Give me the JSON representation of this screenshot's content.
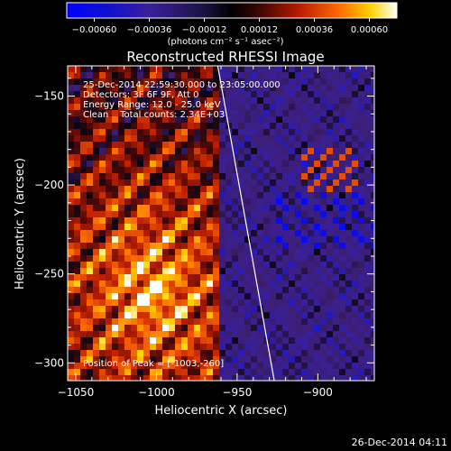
{
  "chart_data": {
    "type": "heatmap",
    "title": "Reconstructed RHESSI Image",
    "xlabel": "Heliocentric X (arcsec)",
    "ylabel": "Heliocentric Y (arcsec)",
    "xlim": [
      -1055,
      -865
    ],
    "ylim": [
      -310,
      -133
    ],
    "xticks": [
      -1050,
      -1000,
      -950,
      -900
    ],
    "yticks": [
      -150,
      -200,
      -250,
      -300
    ],
    "xtick_labels": [
      "−1050",
      "−1000",
      "−950",
      "−900"
    ],
    "ytick_labels": [
      "−150",
      "−200",
      "−250",
      "−300"
    ],
    "colorbar": {
      "min": -0.0006,
      "max": 0.0006,
      "ticks": [
        "−0.00060",
        "−0.00036",
        "−0.00012",
        "0.00012",
        "0.00036",
        "0.00060"
      ],
      "unit_label": "(photons cm⁻² s⁻¹ asec⁻²)"
    },
    "annotations": [
      "25-Dec-2014 22:59:30.000 to 23:05:00.000",
      "Detectors: 3F 6F 9F, Att 0",
      "Energy Range: 12.0 - 25.0 keV",
      "Clean    Total counts: 2.34E+03"
    ],
    "peak_label": "Position of Peak = [-1003,-260]",
    "peak": [
      -1003,
      -260
    ],
    "limb_line": [
      [
        -962,
        -133
      ],
      [
        -927,
        -310
      ]
    ]
  },
  "footer": {
    "timestamp": "26-Dec-2014 04:11"
  }
}
